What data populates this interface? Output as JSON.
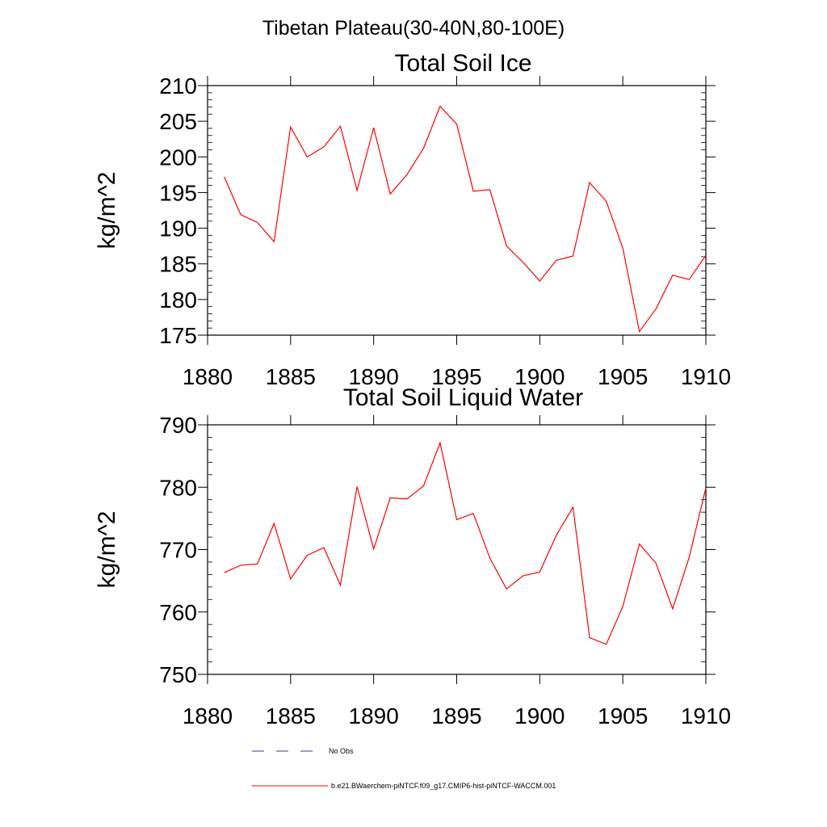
{
  "title": "Tibetan Plateau(30-40N,80-100E)",
  "legend": {
    "placement": "bottom",
    "items": [
      {
        "label": "No Obs",
        "color": "#3a3a8c",
        "style": "dashed"
      },
      {
        "label": "b.e21.BWaerchem-piNTCF.f09_g17.CMIP6-hist-piNTCF-WACCM.001",
        "color": "#ff0000",
        "style": "solid"
      }
    ]
  },
  "chart_data": [
    {
      "type": "line",
      "title": "Total Soil Ice",
      "xlabel": "",
      "ylabel": "kg/m^2",
      "xlim": [
        1880,
        1910
      ],
      "ylim": [
        175,
        210
      ],
      "xticks": [
        "1880",
        "1885",
        "1890",
        "1895",
        "1900",
        "1905",
        "1910"
      ],
      "yticks": [
        "175",
        "180",
        "185",
        "190",
        "195",
        "200",
        "205",
        "210"
      ],
      "grid": false,
      "x": [
        1881,
        1882,
        1883,
        1884,
        1885,
        1886,
        1887,
        1888,
        1889,
        1890,
        1891,
        1892,
        1893,
        1894,
        1895,
        1896,
        1897,
        1898,
        1899,
        1900,
        1901,
        1902,
        1903,
        1904,
        1905,
        1906,
        1907,
        1908,
        1909,
        1910
      ],
      "series": [
        {
          "color": "#ff0000",
          "values": [
            197.2,
            191.9,
            190.8,
            188.1,
            204.2,
            200.0,
            201.4,
            204.3,
            195.3,
            204.1,
            194.8,
            197.5,
            201.2,
            207.1,
            204.6,
            195.2,
            195.4,
            187.5,
            185.2,
            182.6,
            185.5,
            186.1,
            196.4,
            193.8,
            187.2,
            175.5,
            178.7,
            183.4,
            182.8,
            186.2
          ]
        }
      ]
    },
    {
      "type": "line",
      "title": "Total Soil Liquid Water",
      "xlabel": "",
      "ylabel": "kg/m^2",
      "xlim": [
        1880,
        1910
      ],
      "ylim": [
        750,
        790
      ],
      "xticks": [
        "1880",
        "1885",
        "1890",
        "1895",
        "1900",
        "1905",
        "1910"
      ],
      "yticks": [
        "750",
        "760",
        "770",
        "780",
        "790"
      ],
      "grid": false,
      "x": [
        1881,
        1882,
        1883,
        1884,
        1885,
        1886,
        1887,
        1888,
        1889,
        1890,
        1891,
        1892,
        1893,
        1894,
        1895,
        1896,
        1897,
        1898,
        1899,
        1900,
        1901,
        1902,
        1903,
        1904,
        1905,
        1906,
        1907,
        1908,
        1909,
        1910
      ],
      "series": [
        {
          "color": "#ff0000",
          "values": [
            766.3,
            767.5,
            767.7,
            774.2,
            765.3,
            769.1,
            770.3,
            764.3,
            780.1,
            770.1,
            778.3,
            778.1,
            780.2,
            787.1,
            774.8,
            775.8,
            768.6,
            763.7,
            765.8,
            766.4,
            772.3,
            776.8,
            755.9,
            754.8,
            760.9,
            770.9,
            767.8,
            760.5,
            768.8,
            779.9
          ]
        }
      ]
    }
  ]
}
